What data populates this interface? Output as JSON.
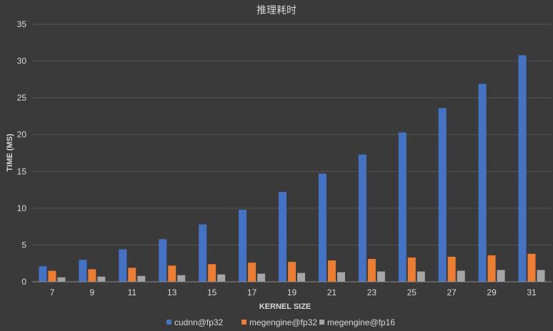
{
  "chart_data": {
    "type": "bar",
    "title": "推理耗时",
    "xlabel": "KERNEL SIZE",
    "ylabel": "TIME (MS)",
    "ylim": [
      0,
      35
    ],
    "yticks": [
      0,
      5,
      10,
      15,
      20,
      25,
      30,
      35
    ],
    "grid": true,
    "legend_position": "bottom",
    "categories": [
      "7",
      "9",
      "11",
      "13",
      "15",
      "17",
      "19",
      "21",
      "23",
      "25",
      "27",
      "29",
      "31"
    ],
    "series": [
      {
        "name": "cudnn@fp32",
        "color": "#4472c4",
        "values": [
          2.1,
          3.0,
          4.4,
          5.8,
          7.8,
          9.8,
          12.2,
          14.7,
          17.3,
          20.3,
          23.6,
          26.9,
          30.8
        ]
      },
      {
        "name": "megengine@fp32",
        "color": "#ed7d31",
        "values": [
          1.5,
          1.7,
          1.9,
          2.2,
          2.4,
          2.6,
          2.7,
          2.9,
          3.1,
          3.3,
          3.4,
          3.6,
          3.8
        ]
      },
      {
        "name": "megengine@fp16",
        "color": "#a5a5a5",
        "values": [
          0.6,
          0.7,
          0.8,
          0.9,
          1.0,
          1.1,
          1.2,
          1.3,
          1.4,
          1.4,
          1.5,
          1.6,
          1.6
        ]
      }
    ]
  }
}
